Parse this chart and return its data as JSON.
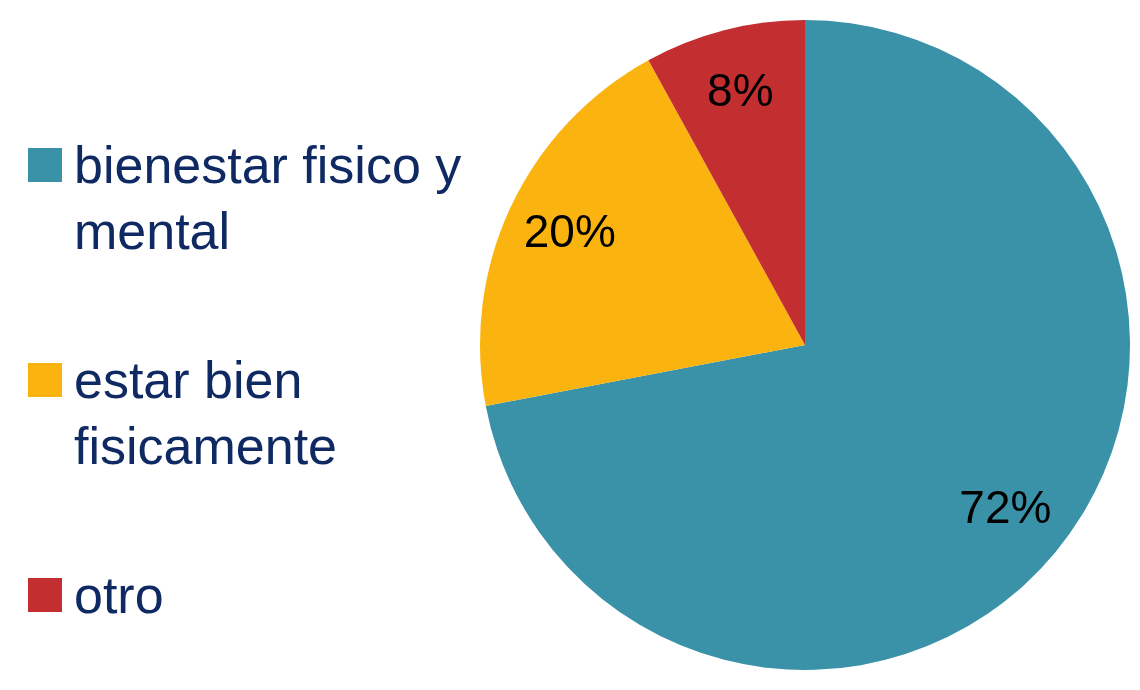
{
  "chart_data": {
    "type": "pie",
    "categories": [
      "bienestar fisico y mental",
      "estar bien fisicamente",
      "otro"
    ],
    "values": [
      72,
      20,
      8
    ],
    "colors": [
      "#3a92a8",
      "#fbb40f",
      "#c32e31"
    ],
    "value_labels": [
      "72%",
      "20%",
      "8%"
    ],
    "legend": "left"
  }
}
